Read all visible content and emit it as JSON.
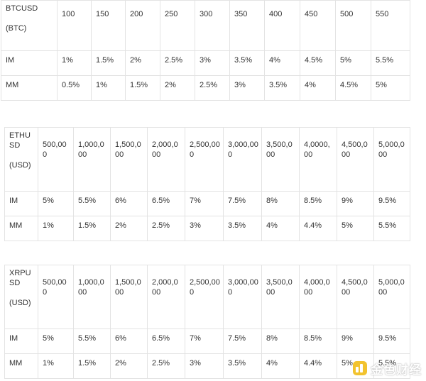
{
  "tables": [
    {
      "symbol": "BTCUSD",
      "unit": "(BTC)",
      "columns": [
        "100",
        "150",
        "200",
        "250",
        "300",
        "350",
        "400",
        "450",
        "500",
        "550"
      ],
      "rows": [
        {
          "label": "IM",
          "values": [
            "1%",
            "1.5%",
            "2%",
            "2.5%",
            "3%",
            "3.5%",
            "4%",
            "4.5%",
            "5%",
            "5.5%"
          ]
        },
        {
          "label": "MM",
          "values": [
            "0.5%",
            "1%",
            "1.5%",
            "2%",
            "2.5%",
            "3%",
            "3.5%",
            "4%",
            "4.5%",
            "5%"
          ]
        }
      ]
    },
    {
      "symbol": "ETHUSD",
      "unit": "(USD)",
      "columns": [
        "500,000",
        "1,000,000",
        "1,500,000",
        "2,000,000",
        "2,500,000",
        "3,000,000",
        "3,500,000",
        "4,0000,00",
        "4,500,000",
        "5,000,000"
      ],
      "rows": [
        {
          "label": "IM",
          "values": [
            "5%",
            "5.5%",
            "6%",
            "6.5%",
            "7%",
            "7.5%",
            "8%",
            "8.5%",
            "9%",
            "9.5%"
          ]
        },
        {
          "label": "MM",
          "values": [
            "1%",
            "1.5%",
            "2%",
            "2.5%",
            "3%",
            "3.5%",
            "4%",
            "4.4%",
            "5%",
            "5.5%"
          ]
        }
      ]
    },
    {
      "symbol": "XRPUSD",
      "unit": "(USD)",
      "columns": [
        "500,000",
        "1,000,000",
        "1,500,000",
        "2,000,000",
        "2,500,000",
        "3,000,000",
        "3,500,000",
        "4,000,000",
        "4,500,000",
        "5,000,000"
      ],
      "rows": [
        {
          "label": "IM",
          "values": [
            "5%",
            "5.5%",
            "6%",
            "6.5%",
            "7%",
            "7.5%",
            "8%",
            "8.5%",
            "9%",
            "9.5%"
          ]
        },
        {
          "label": "MM",
          "values": [
            "1%",
            "1.5%",
            "2%",
            "2.5%",
            "3%",
            "3.5%",
            "4%",
            "4.4%",
            "5%",
            "5.5%"
          ]
        }
      ]
    }
  ],
  "watermark": {
    "text": "金色财经",
    "color": "#f0b90b"
  }
}
